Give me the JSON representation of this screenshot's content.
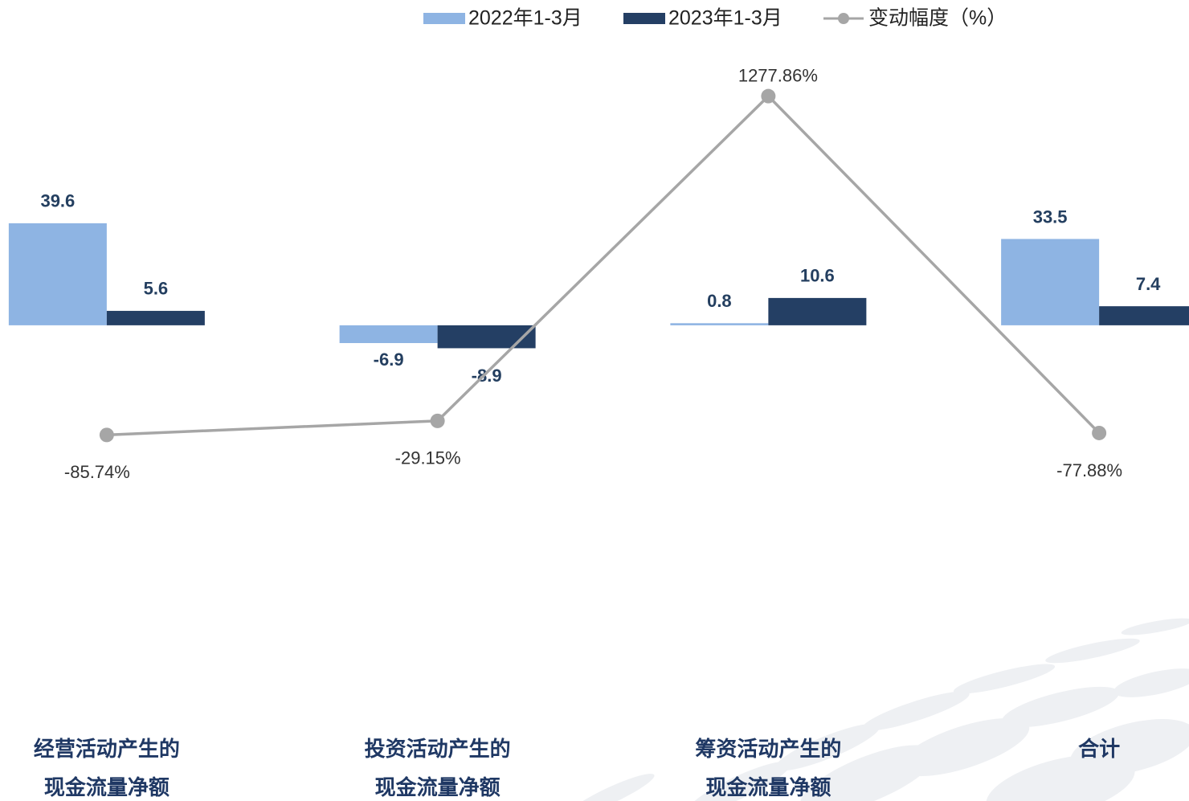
{
  "chart_data": {
    "type": "bar-line",
    "categories": [
      [
        "经营活动产生的",
        "现金流量净额"
      ],
      [
        "投资活动产生的",
        "现金流量净额"
      ],
      [
        "筹资活动产生的",
        "现金流量净额"
      ],
      [
        "合计"
      ]
    ],
    "series": [
      {
        "name": "2022年1-3月",
        "type": "bar",
        "color": "#8EB4E3",
        "values": [
          39.6,
          -6.9,
          0.8,
          33.5
        ]
      },
      {
        "name": "2023年1-3月",
        "type": "bar",
        "color": "#243F64",
        "values": [
          5.6,
          -8.9,
          10.6,
          7.4
        ]
      },
      {
        "name": "变动幅度（%）",
        "type": "line",
        "axis": "y2",
        "color": "#A6A6A6",
        "values": [
          -85.74,
          -29.15,
          1277.86,
          -77.88
        ],
        "value_labels": [
          "-85.74%",
          "-29.15%",
          "1277.86%",
          "-77.88%"
        ]
      }
    ],
    "ylim": [
      -150,
      120
    ],
    "y2lim": [
      -1200,
      1600
    ],
    "legend": "top"
  }
}
